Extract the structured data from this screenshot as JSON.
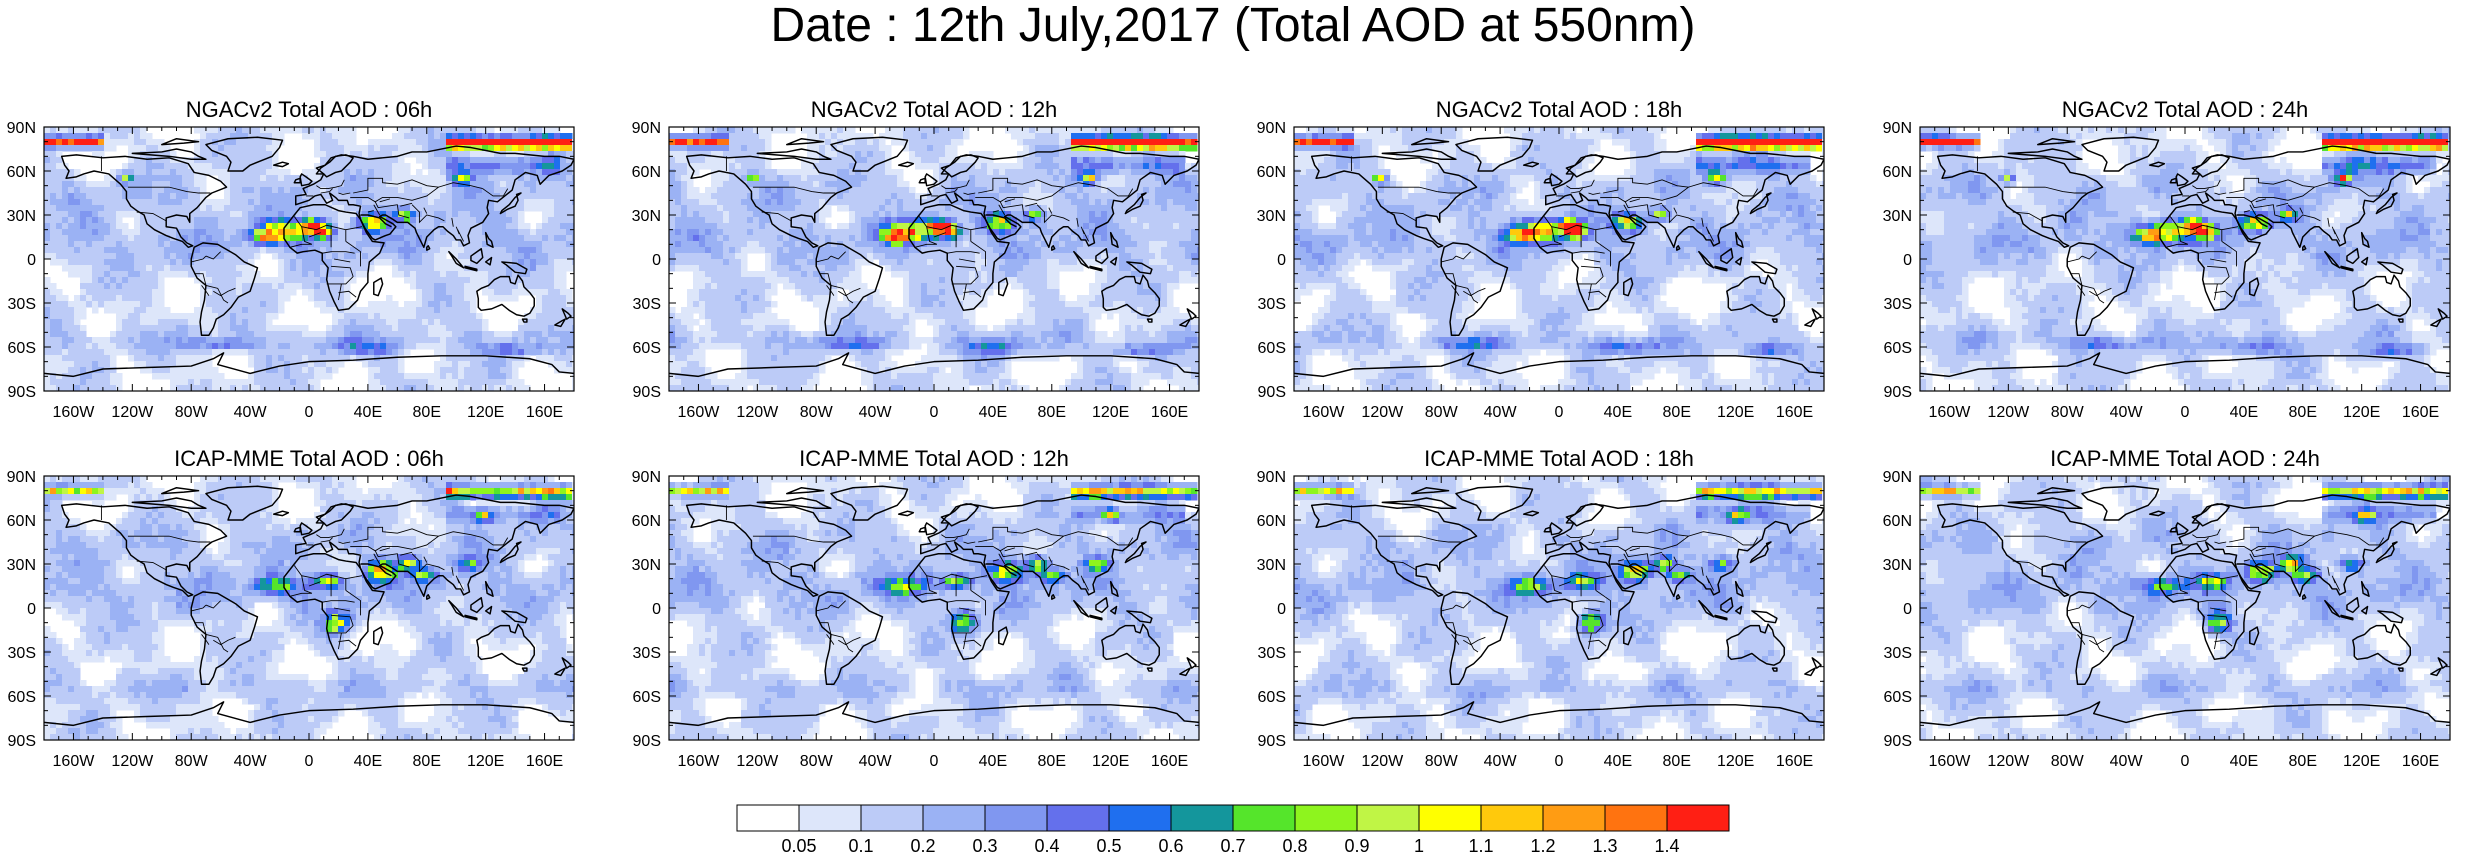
{
  "title": "Date : 12th July,2017 (Total AOD at 550nm)",
  "panels": [
    {
      "title": "NGACv2 Total AOD : 06h"
    },
    {
      "title": "NGACv2 Total AOD : 12h"
    },
    {
      "title": "NGACv2 Total AOD : 18h"
    },
    {
      "title": "NGACv2 Total AOD : 24h"
    },
    {
      "title": "ICAP-MME Total AOD : 06h"
    },
    {
      "title": "ICAP-MME Total AOD : 12h"
    },
    {
      "title": "ICAP-MME Total AOD : 18h"
    },
    {
      "title": "ICAP-MME Total AOD : 24h"
    }
  ],
  "lat_ticks": [
    "90N",
    "60N",
    "30N",
    "0",
    "30S",
    "60S",
    "90S"
  ],
  "lon_ticks": [
    "160W",
    "120W",
    "80W",
    "40W",
    "0",
    "40E",
    "80E",
    "120E",
    "160E"
  ],
  "lon_tick_values": [
    -160,
    -120,
    -80,
    -40,
    0,
    40,
    80,
    120,
    160
  ],
  "lat_tick_values": [
    90,
    60,
    30,
    0,
    -30,
    -60,
    -90
  ],
  "colorbar": {
    "colors": [
      "#ffffff",
      "#dde6fa",
      "#bccbf7",
      "#9bb2f4",
      "#8097f0",
      "#6470ec",
      "#1f6fef",
      "#14969c",
      "#55e52b",
      "#8ef41e",
      "#c0f545",
      "#ffff00",
      "#ffc90c",
      "#ff9c13",
      "#ff7310",
      "#ff1f14"
    ],
    "labels": [
      "0.05",
      "0.1",
      "0.2",
      "0.3",
      "0.4",
      "0.5",
      "0.6",
      "0.7",
      "0.8",
      "0.9",
      "1",
      "1.1",
      "1.2",
      "1.3",
      "1.4"
    ]
  },
  "features": {
    "ngac": {
      "n_east": 1.8,
      "n_west": 1.5,
      "blobs": [
        {
          "lon": -15,
          "lat": 19,
          "w": 18,
          "h": 7,
          "v": 0.95
        },
        {
          "lon": -28,
          "lat": 15,
          "w": 10,
          "h": 5,
          "v": 0.7
        },
        {
          "lon": 5,
          "lat": 22,
          "w": 8,
          "h": 5,
          "v": 1.25
        },
        {
          "lon": 12,
          "lat": 18,
          "w": 6,
          "h": 4,
          "v": 1.1
        },
        {
          "lon": 45,
          "lat": 25,
          "w": 10,
          "h": 6,
          "v": 0.9
        },
        {
          "lon": 67,
          "lat": 30,
          "w": 6,
          "h": 4,
          "v": 0.85
        },
        {
          "lon": 105,
          "lat": 55,
          "w": 6,
          "h": 4,
          "v": 1.0
        },
        {
          "lon": -123,
          "lat": 55,
          "w": 4,
          "h": 3,
          "v": 1.0
        },
        {
          "lon": -60,
          "lat": -58,
          "w": 25,
          "h": 4,
          "v": 0.35
        },
        {
          "lon": 40,
          "lat": -60,
          "w": 25,
          "h": 5,
          "v": 0.35
        },
        {
          "lon": 140,
          "lat": -62,
          "w": 20,
          "h": 4,
          "v": 0.35
        }
      ]
    },
    "icap": {
      "n_east": 1.0,
      "n_west": 0.9,
      "blobs": [
        {
          "lon": -20,
          "lat": 15,
          "w": 15,
          "h": 6,
          "v": 0.65
        },
        {
          "lon": 15,
          "lat": 18,
          "w": 10,
          "h": 5,
          "v": 0.7
        },
        {
          "lon": 20,
          "lat": -10,
          "w": 8,
          "h": 7,
          "v": 0.85
        },
        {
          "lon": 50,
          "lat": 25,
          "w": 10,
          "h": 7,
          "v": 0.95
        },
        {
          "lon": 70,
          "lat": 30,
          "w": 7,
          "h": 5,
          "v": 0.85
        },
        {
          "lon": 80,
          "lat": 22,
          "w": 8,
          "h": 4,
          "v": 0.75
        },
        {
          "lon": 110,
          "lat": 30,
          "w": 8,
          "h": 5,
          "v": 0.6
        },
        {
          "lon": 120,
          "lat": 63,
          "w": 6,
          "h": 4,
          "v": 0.75
        }
      ]
    }
  }
}
